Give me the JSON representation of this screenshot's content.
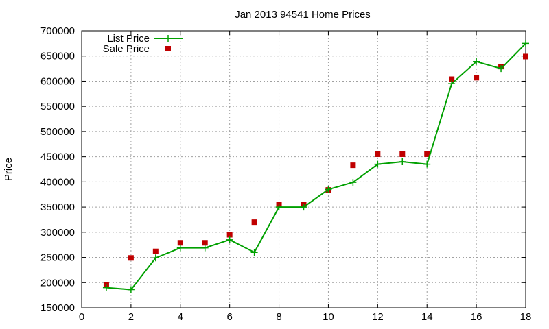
{
  "chart_data": {
    "type": "line",
    "title": "Jan 2013 94541 Home Prices",
    "xlabel": "",
    "ylabel": "Price",
    "xlim": [
      0,
      18
    ],
    "ylim": [
      150000,
      700000
    ],
    "xticks": [
      0,
      2,
      4,
      6,
      8,
      10,
      12,
      14,
      16,
      18
    ],
    "yticks": [
      150000,
      200000,
      250000,
      300000,
      350000,
      400000,
      450000,
      500000,
      550000,
      600000,
      650000,
      700000
    ],
    "xtick_labels": [
      "0",
      "2",
      "4",
      "6",
      "8",
      "10",
      "12",
      "14",
      "16",
      "18"
    ],
    "ytick_labels": [
      "150000",
      "200000",
      "250000",
      "300000",
      "350000",
      "400000",
      "450000",
      "500000",
      "550000",
      "600000",
      "650000",
      "700000"
    ],
    "grid": true,
    "legend_position": "top-left",
    "x": [
      1,
      2,
      3,
      4,
      5,
      6,
      7,
      8,
      9,
      10,
      11,
      12,
      13,
      14,
      15,
      16,
      17,
      18
    ],
    "series": [
      {
        "name": "List Price",
        "style": "line-with-plus-markers",
        "color": "#00a000",
        "values": [
          190000,
          186000,
          249000,
          269000,
          269000,
          285000,
          260000,
          350000,
          350000,
          385000,
          399000,
          435000,
          440000,
          435000,
          595000,
          639000,
          625000,
          675000
        ]
      },
      {
        "name": "Sale Price",
        "style": "square-markers",
        "color": "#c00000",
        "values": [
          195000,
          249000,
          262000,
          279000,
          279000,
          295000,
          320000,
          355000,
          355000,
          384000,
          433000,
          455000,
          455000,
          455000,
          604000,
          607000,
          629000,
          649000
        ]
      }
    ]
  }
}
